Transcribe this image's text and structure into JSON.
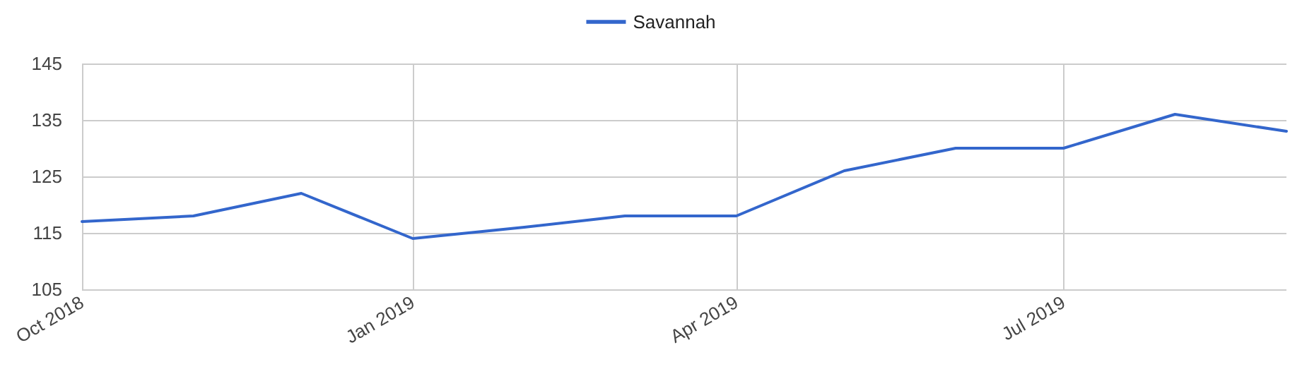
{
  "chart_data": {
    "type": "line",
    "x": [
      "2018-10",
      "2018-11",
      "2018-12",
      "2019-01",
      "2019-02",
      "2019-03",
      "2019-04",
      "2019-05",
      "2019-06",
      "2019-07",
      "2019-08",
      "2019-09"
    ],
    "series": [
      {
        "name": "Savannah",
        "color": "#3366cc",
        "values": [
          117,
          118,
          122,
          114,
          116,
          118,
          118,
          126,
          130,
          130,
          136,
          133
        ]
      }
    ],
    "xlim": [
      "2018-10",
      "2019-09"
    ],
    "xticks": [
      {
        "value": "2018-10",
        "label": "Oct 2018"
      },
      {
        "value": "2019-01",
        "label": "Jan 2019"
      },
      {
        "value": "2019-04",
        "label": "Apr 2019"
      },
      {
        "value": "2019-07",
        "label": "Jul 2019"
      }
    ],
    "ylim": [
      105,
      145
    ],
    "yticks": [
      105,
      115,
      125,
      135,
      145
    ],
    "grid": true,
    "legend": "top",
    "marker": "none",
    "line_style": "solid"
  }
}
